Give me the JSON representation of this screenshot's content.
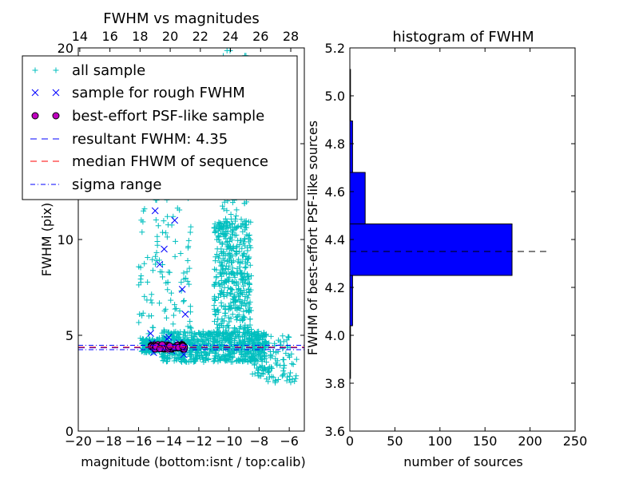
{
  "chart_data": [
    {
      "type": "scatter",
      "title": "FWHM vs magnitudes",
      "xlabel": "magnitude (bottom:isnt / top:calib)",
      "ylabel": "FWHM (pix)",
      "xlim": [
        -20,
        -5
      ],
      "ylim": [
        0,
        20
      ],
      "x_ticks": [
        -20,
        -18,
        -16,
        -14,
        -12,
        -10,
        -8,
        -6
      ],
      "x_tick_labels": [
        "−20",
        "−18",
        "−16",
        "−14",
        "−12",
        "−10",
        "−8",
        "−6"
      ],
      "y_ticks": [
        0,
        5,
        10,
        15,
        20
      ],
      "y_tick_labels": [
        "0",
        "5",
        "10",
        "15",
        "20"
      ],
      "top_ticks": [
        14,
        16,
        18,
        20,
        22,
        24,
        26,
        28
      ],
      "top_tick_labels": [
        "14",
        "16",
        "18",
        "20",
        "22",
        "24",
        "26",
        "28"
      ],
      "top_axis_offset": 33.9,
      "legend_placement": "upper-left",
      "series": [
        {
          "name": "all sample",
          "marker": "plus",
          "color": "#00bfbf",
          "clusters": [
            {
              "x": [
                -15.8,
                -14.5
              ],
              "y": [
                4.1,
                4.8
              ],
              "n": 180
            },
            {
              "x": [
                -14.5,
                -7.5
              ],
              "y": [
                3.6,
                5.2
              ],
              "n": 700
            },
            {
              "x": [
                -16,
                -12.5
              ],
              "y": [
                4.8,
                17
              ],
              "n": 170
            },
            {
              "x": [
                -11,
                -8.5
              ],
              "y": [
                5,
                11
              ],
              "n": 380
            },
            {
              "x": [
                -10.5,
                -8.8
              ],
              "y": [
                7,
                20
              ],
              "n": 180
            },
            {
              "x": [
                -8.5,
                -5.5
              ],
              "y": [
                2.5,
                5
              ],
              "n": 110
            }
          ]
        },
        {
          "name": "sample for rough FWHM",
          "marker": "x",
          "color": "#0000ff",
          "points": [
            [
              -15.2,
              5.1
            ],
            [
              -15.1,
              4.6
            ],
            [
              -14.9,
              4.3
            ],
            [
              -14.6,
              8.7
            ],
            [
              -14.5,
              4.5
            ],
            [
              -14.3,
              9.5
            ],
            [
              -14.1,
              4.8
            ],
            [
              -14.0,
              4.9
            ],
            [
              -13.8,
              4.2
            ],
            [
              -13.6,
              11.0
            ],
            [
              -13.5,
              4.4
            ],
            [
              -13.3,
              4.6
            ],
            [
              -13.1,
              7.4
            ],
            [
              -13.0,
              4.0
            ],
            [
              -12.9,
              6.1
            ],
            [
              -14.9,
              11.5
            ],
            [
              -14.7,
              4.4
            ],
            [
              -13.9,
              4.3
            ],
            [
              -13.4,
              4.5
            ],
            [
              -15.0,
              4.1
            ]
          ]
        },
        {
          "name": "best-effort PSF-like sample",
          "marker": "circle",
          "color": "#bf00bf",
          "cluster": {
            "x": [
              -15.2,
              -12.9
            ],
            "y": [
              4.28,
              4.52
            ],
            "n": 55
          }
        }
      ],
      "lines": [
        {
          "name": "resultant FWHM: 4.35",
          "style": "dashed",
          "color": "#0000ff",
          "y": 4.35
        },
        {
          "name": "median FHWM of sequence",
          "style": "dashed",
          "color": "#ff0000",
          "y": 4.38
        },
        {
          "name": "sigma range",
          "style": "dashdot",
          "color": "#0000ff",
          "y": [
            4.25,
            4.48
          ]
        }
      ]
    },
    {
      "type": "bar",
      "orientation": "horizontal",
      "title": "histogram of FWHM",
      "xlabel": "number of sources",
      "ylabel": "FWHM of best-effort PSF-like sources",
      "xlim": [
        0,
        250
      ],
      "ylim": [
        3.6,
        5.2
      ],
      "x_ticks": [
        0,
        50,
        100,
        150,
        200,
        250
      ],
      "x_tick_labels": [
        "0",
        "50",
        "100",
        "150",
        "200",
        "250"
      ],
      "y_ticks": [
        3.6,
        3.8,
        4.0,
        4.2,
        4.4,
        4.6,
        4.8,
        5.0,
        5.2
      ],
      "y_tick_labels": [
        "3.6",
        "3.8",
        "4.0",
        "4.2",
        "4.4",
        "4.6",
        "4.8",
        "5.0",
        "5.2"
      ],
      "color": "#0000ff",
      "bins": [
        {
          "y0": 3.82,
          "y1": 4.04,
          "value": 0.5
        },
        {
          "y0": 4.04,
          "y1": 4.25,
          "value": 3
        },
        {
          "y0": 4.25,
          "y1": 4.465,
          "value": 180
        },
        {
          "y0": 4.465,
          "y1": 4.68,
          "value": 17
        },
        {
          "y0": 4.68,
          "y1": 4.895,
          "value": 3
        },
        {
          "y0": 4.895,
          "y1": 5.11,
          "value": 0.5
        }
      ],
      "reference_line": {
        "style": "dashed",
        "color": "#000000",
        "y": 4.35,
        "x": [
          0,
          218
        ]
      }
    }
  ]
}
